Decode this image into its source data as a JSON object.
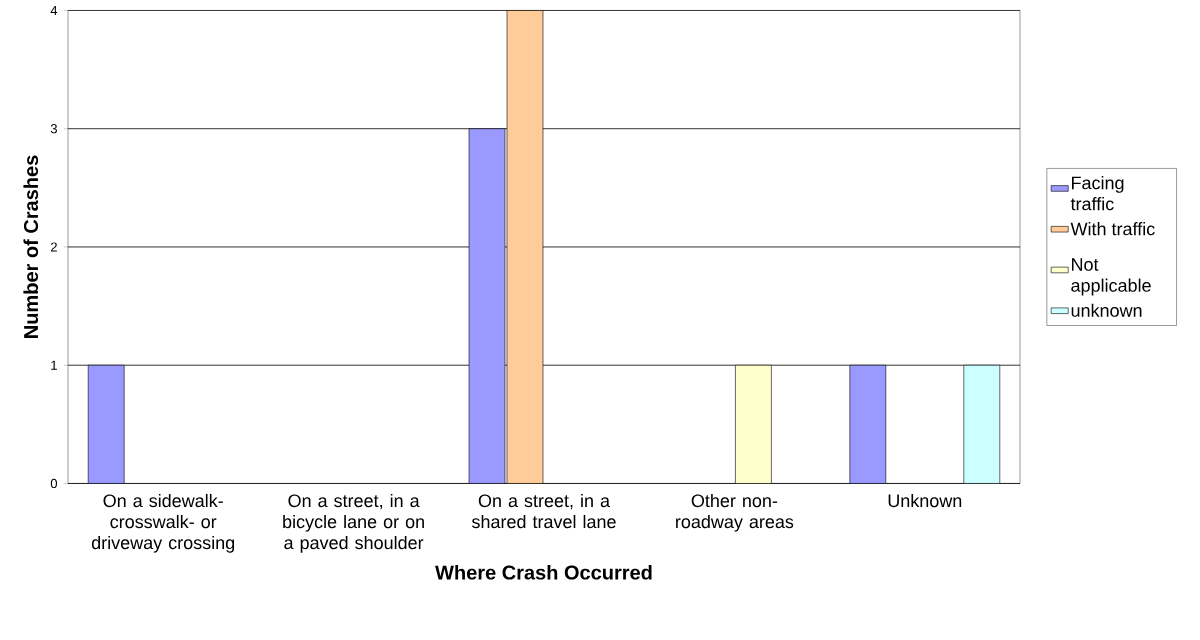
{
  "chart_data": {
    "type": "bar",
    "xlabel": "Where Crash Occurred",
    "ylabel": "Number of Crashes",
    "categories": [
      "On a sidewalk-crosswalk- or driveway crossing",
      "On a street, in a bicycle lane or on a paved shoulder",
      "On a street, in a shared travel lane",
      "Other non-roadway areas",
      "Unknown"
    ],
    "series": [
      {
        "name": "Facing traffic",
        "color": "#9999ff",
        "values": [
          1,
          null,
          3,
          null,
          1
        ]
      },
      {
        "name": "With traffic",
        "color": "#ffcc99",
        "values": [
          null,
          null,
          4,
          null,
          null
        ]
      },
      {
        "name": "Not applicable",
        "color": "#ffffcc",
        "values": [
          null,
          null,
          null,
          1,
          null
        ]
      },
      {
        "name": "unknown",
        "color": "#ccffff",
        "values": [
          null,
          null,
          null,
          null,
          1
        ]
      }
    ],
    "ylim": [
      0,
      4
    ],
    "yticks": [
      0,
      1,
      2,
      3,
      4
    ],
    "grid": "y",
    "legend": "right"
  }
}
